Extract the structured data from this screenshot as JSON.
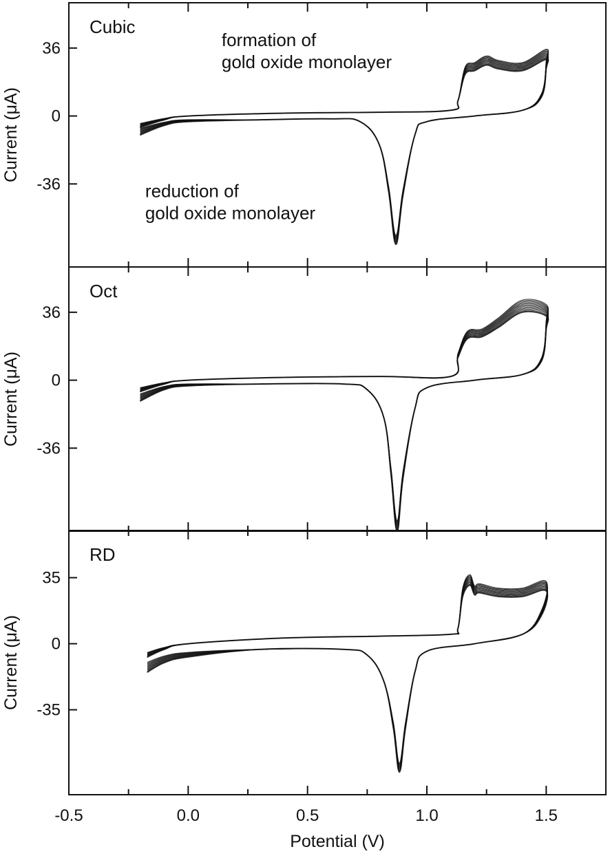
{
  "chart_data": [
    {
      "type": "line",
      "panel_label": "Cubic",
      "xlabel": "",
      "ylabel": "Current (μA)",
      "xlim": [
        -0.5,
        1.75
      ],
      "ylim": [
        -80,
        60
      ],
      "yticks": [
        36,
        0,
        -36
      ],
      "ytick_labels": [
        "36",
        "0",
        "-36"
      ],
      "grid": false,
      "annotations": [
        {
          "lines": [
            "formation of",
            "gold oxide monolayer"
          ],
          "x": 0.14,
          "y": 37
        },
        {
          "lines": [
            "reduction of",
            "gold oxide monolayer"
          ],
          "x": -0.18,
          "y": -43
        }
      ],
      "series": [
        {
          "cycles": 12,
          "values": [
            {
              "E": -0.2,
              "I": -10
            },
            {
              "E": -0.1,
              "I": -5
            },
            {
              "E": 0.0,
              "I": -3
            },
            {
              "E": 0.3,
              "I": -2
            },
            {
              "E": 0.6,
              "I": -1.5
            },
            {
              "E": 0.72,
              "I": -3
            },
            {
              "E": 0.8,
              "I": -15
            },
            {
              "E": 0.84,
              "I": -40
            },
            {
              "E": 0.87,
              "I": -68
            },
            {
              "E": 0.9,
              "I": -42
            },
            {
              "E": 0.95,
              "I": -10
            },
            {
              "E": 1.0,
              "I": -3
            },
            {
              "E": 1.2,
              "I": 0
            },
            {
              "E": 1.4,
              "I": 3
            },
            {
              "E": 1.48,
              "I": 10
            },
            {
              "E": 1.5,
              "I": 25
            },
            {
              "E": 1.5,
              "I": 30
            },
            {
              "E": 1.4,
              "I": 24
            },
            {
              "E": 1.3,
              "I": 25
            },
            {
              "E": 1.25,
              "I": 27
            },
            {
              "E": 1.2,
              "I": 24
            },
            {
              "E": 1.16,
              "I": 22
            },
            {
              "E": 1.13,
              "I": 8
            },
            {
              "E": 1.1,
              "I": 3
            },
            {
              "E": 0.8,
              "I": 2
            },
            {
              "E": 0.4,
              "I": 1.5
            },
            {
              "E": 0.0,
              "I": 0
            },
            {
              "E": -0.1,
              "I": -2
            },
            {
              "E": -0.2,
              "I": -6
            }
          ]
        }
      ]
    },
    {
      "type": "line",
      "panel_label": "Oct",
      "xlabel": "",
      "ylabel": "Current (μA)",
      "xlim": [
        -0.5,
        1.75
      ],
      "ylim": [
        -80,
        60
      ],
      "yticks": [
        36,
        0,
        -36
      ],
      "ytick_labels": [
        "36",
        "0",
        "-36"
      ],
      "grid": false,
      "series": [
        {
          "cycles": 12,
          "values": [
            {
              "E": -0.2,
              "I": -11
            },
            {
              "E": -0.1,
              "I": -5
            },
            {
              "E": 0.0,
              "I": -3
            },
            {
              "E": 0.3,
              "I": -2
            },
            {
              "E": 0.65,
              "I": -2
            },
            {
              "E": 0.75,
              "I": -5
            },
            {
              "E": 0.82,
              "I": -20
            },
            {
              "E": 0.85,
              "I": -50
            },
            {
              "E": 0.875,
              "I": -80
            },
            {
              "E": 0.9,
              "I": -52
            },
            {
              "E": 0.95,
              "I": -15
            },
            {
              "E": 1.0,
              "I": -4
            },
            {
              "E": 1.2,
              "I": 0
            },
            {
              "E": 1.4,
              "I": 3
            },
            {
              "E": 1.48,
              "I": 10
            },
            {
              "E": 1.5,
              "I": 27
            },
            {
              "E": 1.5,
              "I": 34
            },
            {
              "E": 1.4,
              "I": 36
            },
            {
              "E": 1.3,
              "I": 28
            },
            {
              "E": 1.23,
              "I": 23
            },
            {
              "E": 1.17,
              "I": 22
            },
            {
              "E": 1.13,
              "I": 12
            },
            {
              "E": 1.1,
              "I": 2
            },
            {
              "E": 0.8,
              "I": 2
            },
            {
              "E": 0.4,
              "I": 1.5
            },
            {
              "E": 0.0,
              "I": 0
            },
            {
              "E": -0.1,
              "I": -2
            },
            {
              "E": -0.2,
              "I": -6
            }
          ]
        }
      ]
    },
    {
      "type": "line",
      "panel_label": "RD",
      "xlabel": "Potential (V)",
      "ylabel": "Current (μA)",
      "xlim": [
        -0.5,
        1.75
      ],
      "xticks": [
        -0.5,
        0.0,
        0.5,
        1.0,
        1.5
      ],
      "xtick_labels": [
        "-0.5",
        "0.0",
        "0.5",
        "1.0",
        "1.5"
      ],
      "ylim": [
        -80,
        60
      ],
      "yticks": [
        35,
        0,
        -35
      ],
      "ytick_labels": [
        "35",
        "0",
        "-35"
      ],
      "grid": false,
      "series": [
        {
          "cycles": 12,
          "values": [
            {
              "E": -0.17,
              "I": -15
            },
            {
              "E": -0.1,
              "I": -10
            },
            {
              "E": 0.0,
              "I": -7
            },
            {
              "E": 0.3,
              "I": -3
            },
            {
              "E": 0.65,
              "I": -3
            },
            {
              "E": 0.75,
              "I": -6
            },
            {
              "E": 0.82,
              "I": -20
            },
            {
              "E": 0.86,
              "I": -45
            },
            {
              "E": 0.885,
              "I": -68
            },
            {
              "E": 0.91,
              "I": -45
            },
            {
              "E": 0.95,
              "I": -15
            },
            {
              "E": 1.0,
              "I": -4
            },
            {
              "E": 1.2,
              "I": 0
            },
            {
              "E": 1.4,
              "I": 5
            },
            {
              "E": 1.48,
              "I": 15
            },
            {
              "E": 1.5,
              "I": 28
            },
            {
              "E": 1.4,
              "I": 25
            },
            {
              "E": 1.3,
              "I": 25
            },
            {
              "E": 1.22,
              "I": 27
            },
            {
              "E": 1.2,
              "I": 26
            },
            {
              "E": 1.18,
              "I": 31
            },
            {
              "E": 1.15,
              "I": 25
            },
            {
              "E": 1.13,
              "I": 8
            },
            {
              "E": 1.1,
              "I": 5
            },
            {
              "E": 0.8,
              "I": 4
            },
            {
              "E": 0.4,
              "I": 3
            },
            {
              "E": 0.0,
              "I": 0
            },
            {
              "E": -0.1,
              "I": -3
            },
            {
              "E": -0.17,
              "I": -7
            }
          ]
        }
      ]
    }
  ]
}
